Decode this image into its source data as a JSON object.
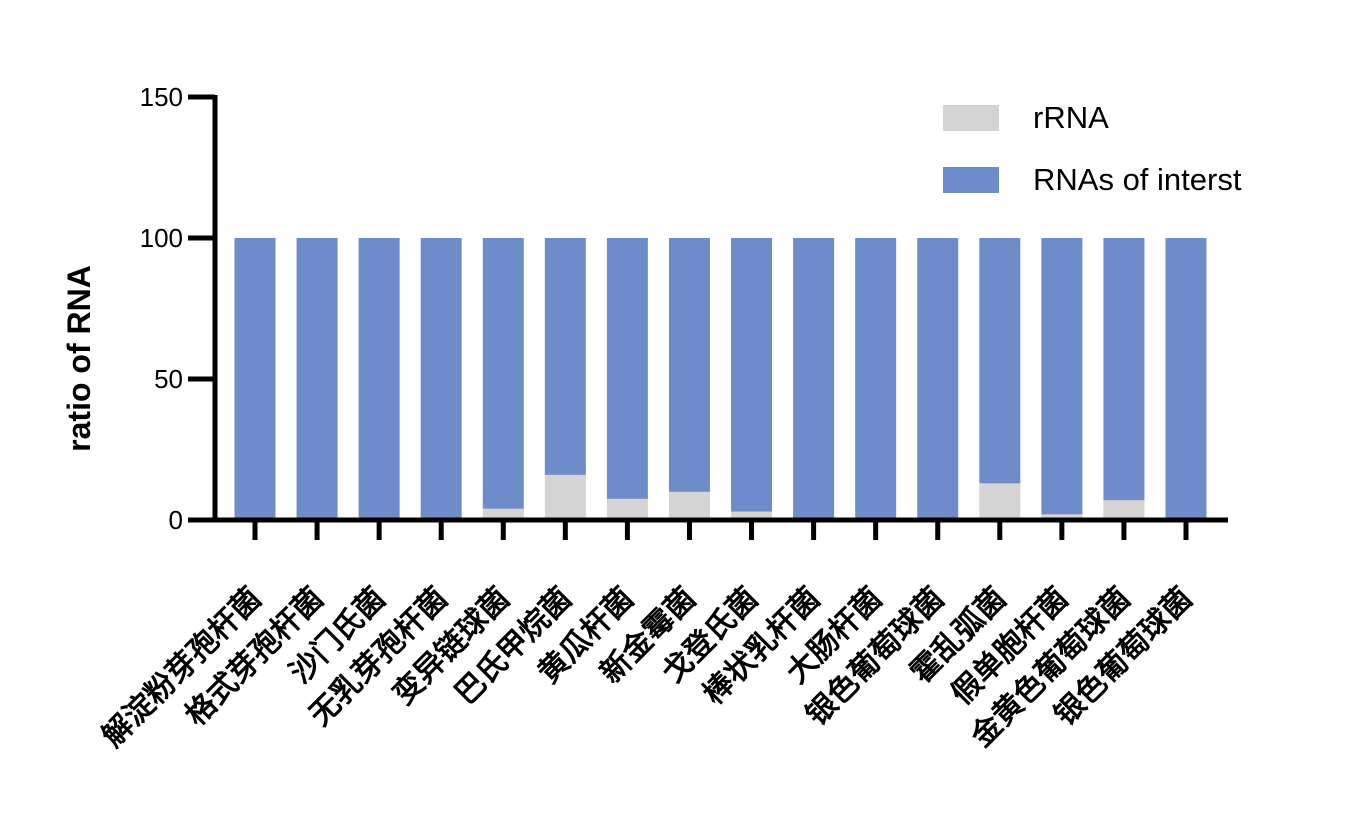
{
  "chart_data": {
    "type": "bar",
    "stacked": true,
    "ylabel": "ratio of RNA",
    "xlabel": "",
    "ylim": [
      0,
      150
    ],
    "yticks": [
      0,
      50,
      100,
      150
    ],
    "grid": false,
    "legend_position": "top-right",
    "categories": [
      "解淀粉芽孢杆菌",
      "格式芽孢杆菌",
      "沙门氏菌",
      "无乳芽孢杆菌",
      "变异链球菌",
      "巴氏甲烷菌",
      "黄瓜杆菌",
      "新金霉菌",
      "戈登氏菌",
      "棒状乳杆菌",
      "大肠杆菌",
      "银色葡萄球菌",
      "霍乱弧菌",
      "假单胞杆菌",
      "金黄色葡萄球菌",
      "银色葡萄球菌"
    ],
    "series": [
      {
        "name": "rRNA",
        "color": "#d4d4d4",
        "values": [
          0.5,
          0.5,
          0.5,
          0.5,
          4,
          16,
          7.5,
          10,
          3,
          0.5,
          0.5,
          0.5,
          13,
          2,
          7,
          0.5
        ]
      },
      {
        "name": "RNAs of interst",
        "color": "#6e8cc9",
        "values": [
          99.5,
          99.5,
          99.5,
          99.5,
          96,
          84,
          92.5,
          90,
          97,
          99.5,
          99.5,
          99.5,
          87,
          98,
          93,
          99.5
        ]
      }
    ]
  }
}
